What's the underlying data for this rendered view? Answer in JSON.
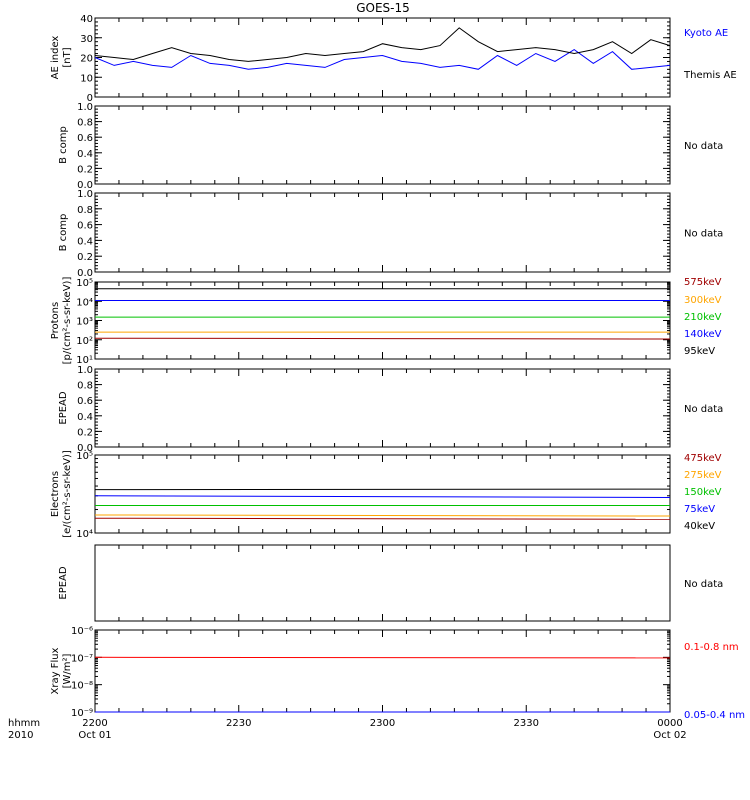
{
  "title": "GOES-15",
  "colors": {
    "black": "#000000",
    "blue": "#0000ff",
    "red": "#ff0000",
    "darkred": "#a00000",
    "orange": "#ffa500",
    "green": "#00c000"
  },
  "time_axis": {
    "row1_label": "hhmm",
    "row2_label": "2010",
    "ticks": [
      {
        "value": 0,
        "label": "2200",
        "sub": "Oct 01"
      },
      {
        "value": 30,
        "label": "2230",
        "sub": ""
      },
      {
        "value": 60,
        "label": "2300",
        "sub": ""
      },
      {
        "value": 90,
        "label": "2330",
        "sub": ""
      },
      {
        "value": 120,
        "label": "0000",
        "sub": "Oct 02"
      }
    ]
  },
  "chart_data": [
    {
      "id": "ae",
      "type": "line",
      "ylabel": [
        "AE index",
        "[nT]"
      ],
      "ylim": [
        0,
        40
      ],
      "yscale": "linear",
      "yticks": [
        0,
        10,
        20,
        30,
        40
      ],
      "yticklabels": [
        "0",
        "10",
        "20",
        "30",
        "40"
      ],
      "xlim": [
        0,
        120
      ],
      "series": [
        {
          "name": "Kyoto AE",
          "color": "#0000ff",
          "x": [
            0,
            4,
            8,
            12,
            16,
            20,
            24,
            28,
            32,
            36,
            40,
            44,
            48,
            52,
            56,
            60,
            64,
            68,
            72,
            76,
            80,
            84,
            88,
            92,
            96,
            100,
            104,
            108,
            112,
            116,
            120
          ],
          "values": [
            20,
            16,
            18,
            16,
            15,
            21,
            17,
            16,
            14,
            15,
            17,
            16,
            15,
            19,
            20,
            21,
            18,
            17,
            15,
            16,
            14,
            21,
            16,
            22,
            18,
            24,
            17,
            23,
            14,
            15,
            16
          ]
        },
        {
          "name": "Themis AE",
          "color": "#000000",
          "x": [
            0,
            4,
            8,
            12,
            16,
            20,
            24,
            28,
            32,
            36,
            40,
            44,
            48,
            52,
            56,
            60,
            64,
            68,
            72,
            76,
            80,
            84,
            88,
            92,
            96,
            100,
            104,
            108,
            112,
            116,
            120
          ],
          "values": [
            21,
            20,
            19,
            22,
            25,
            22,
            21,
            19,
            18,
            19,
            20,
            22,
            21,
            22,
            23,
            27,
            25,
            24,
            26,
            35,
            28,
            23,
            24,
            25,
            24,
            22,
            24,
            28,
            22,
            29,
            26
          ]
        }
      ]
    },
    {
      "id": "b1",
      "type": "line",
      "ylabel": [
        "B comp"
      ],
      "ylim": [
        0,
        1
      ],
      "yscale": "linear",
      "yticks": [
        0,
        0.2,
        0.4,
        0.6,
        0.8,
        1
      ],
      "yticklabels": [
        "0.0",
        "0.2",
        "0.4",
        "0.6",
        "0.8",
        "1.0"
      ],
      "series": [],
      "status": "No data"
    },
    {
      "id": "b2",
      "type": "line",
      "ylabel": [
        "B comp"
      ],
      "ylim": [
        0,
        1
      ],
      "yscale": "linear",
      "yticks": [
        0,
        0.2,
        0.4,
        0.6,
        0.8,
        1
      ],
      "yticklabels": [
        "0.0",
        "0.2",
        "0.4",
        "0.6",
        "0.8",
        "1.0"
      ],
      "series": [],
      "status": "No data"
    },
    {
      "id": "protons",
      "type": "line",
      "ylabel": [
        "Protons",
        "[p/(cm²-s-sr-keV)]"
      ],
      "ylim": [
        10,
        100000
      ],
      "yscale": "log",
      "yticks": [
        10,
        100,
        1000,
        10000,
        100000
      ],
      "yticklabels": [
        "10¹",
        "10²",
        "10³",
        "10⁴",
        "10⁵"
      ],
      "series": [
        {
          "name": "575keV",
          "color": "#a00000",
          "x": [
            0,
            120
          ],
          "values": [
            120,
            110
          ]
        },
        {
          "name": "300keV",
          "color": "#ffa500",
          "x": [
            0,
            120
          ],
          "values": [
            250,
            250
          ]
        },
        {
          "name": "210keV",
          "color": "#00c000",
          "x": [
            0,
            120
          ],
          "values": [
            1500,
            1500
          ]
        },
        {
          "name": "140keV",
          "color": "#0000ff",
          "x": [
            0,
            120
          ],
          "values": [
            11000,
            11000
          ]
        },
        {
          "name": "95keV",
          "color": "#000000",
          "x": [
            0,
            120
          ],
          "values": [
            45000,
            45000
          ]
        }
      ]
    },
    {
      "id": "epead1",
      "type": "line",
      "ylabel": [
        "EPEAD"
      ],
      "ylim": [
        0,
        1
      ],
      "yscale": "linear",
      "yticks": [
        0,
        0.2,
        0.4,
        0.6,
        0.8,
        1
      ],
      "yticklabels": [
        "0.0",
        "0.2",
        "0.4",
        "0.6",
        "0.8",
        "1.0"
      ],
      "series": [],
      "status": "No data"
    },
    {
      "id": "electrons",
      "type": "line",
      "ylabel": [
        "Electrons",
        "[e/(cm²-s-sr-keV)]"
      ],
      "ylim": [
        10000,
        100000
      ],
      "yscale": "log",
      "yticks": [
        10000,
        100000
      ],
      "yticklabels": [
        "10⁴",
        "10⁵"
      ],
      "series": [
        {
          "name": "475keV",
          "color": "#a00000",
          "x": [
            0,
            120
          ],
          "values": [
            15500,
            15000
          ]
        },
        {
          "name": "275keV",
          "color": "#ffa500",
          "x": [
            0,
            120
          ],
          "values": [
            17000,
            16500
          ]
        },
        {
          "name": "150keV",
          "color": "#00c000",
          "x": [
            0,
            120
          ],
          "values": [
            22500,
            22500
          ]
        },
        {
          "name": "75keV",
          "color": "#0000ff",
          "x": [
            0,
            120
          ],
          "values": [
            30000,
            28500
          ]
        },
        {
          "name": "40keV",
          "color": "#000000",
          "x": [
            0,
            120
          ],
          "values": [
            36000,
            36500
          ]
        }
      ]
    },
    {
      "id": "epead2",
      "type": "line",
      "ylabel": [
        "EPEAD"
      ],
      "ylim": [
        0,
        1
      ],
      "yscale": "linear",
      "yticks": [],
      "yticklabels": [],
      "series": [],
      "status": "No data"
    },
    {
      "id": "xray",
      "type": "line",
      "ylabel": [
        "Xray Flux",
        "[W/m²]"
      ],
      "ylim": [
        1e-09,
        1e-06
      ],
      "yscale": "log",
      "yticks": [
        1e-09,
        1e-08,
        1e-07,
        1e-06
      ],
      "yticklabels": [
        "10⁻⁹",
        "10⁻⁸",
        "10⁻⁷",
        "10⁻⁶"
      ],
      "series": [
        {
          "name": "0.1-0.8 nm",
          "color": "#ff0000",
          "x": [
            0,
            120
          ],
          "values": [
            1e-07,
            9.5e-08
          ]
        },
        {
          "name": "0.05-0.4 nm",
          "color": "#0000ff",
          "x": [
            0,
            120
          ],
          "values": [
            1e-09,
            1e-09
          ]
        }
      ]
    }
  ]
}
